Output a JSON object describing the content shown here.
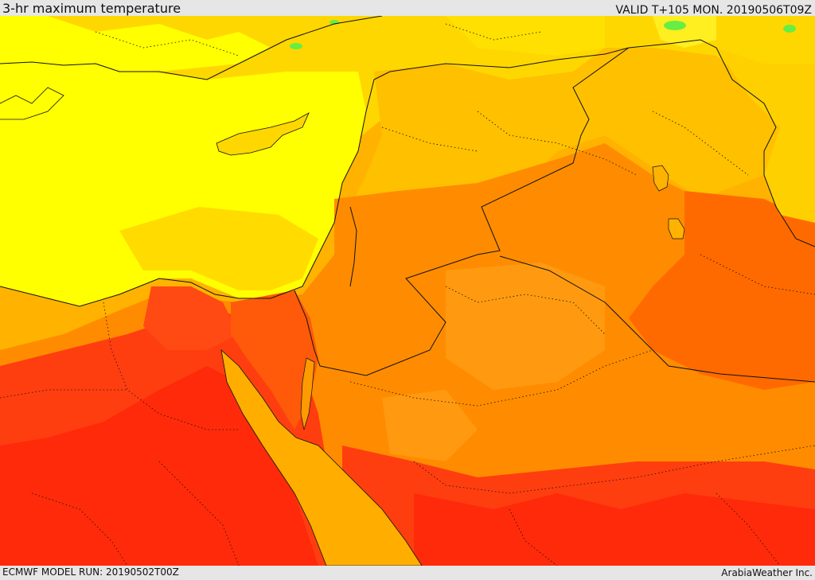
{
  "header": {
    "title": "3-hr maximum temperature",
    "valid": "VALID T+105 MON. 20190506T09Z"
  },
  "footer": {
    "model_run": "ECMWF MODEL RUN: 20190502T00Z",
    "credit": "ArabiaWeather Inc."
  },
  "palette": {
    "cool_green": "#66ee44",
    "yellow": "#ffff00",
    "gold": "#ffd700",
    "amber": "#ffb300",
    "orange": "#ff8c00",
    "dark_orange": "#ff6a00",
    "red_orange": "#ff3e10",
    "red": "#ff2a0a",
    "sea_amber": "#ffae00",
    "boundary": "#111111"
  }
}
